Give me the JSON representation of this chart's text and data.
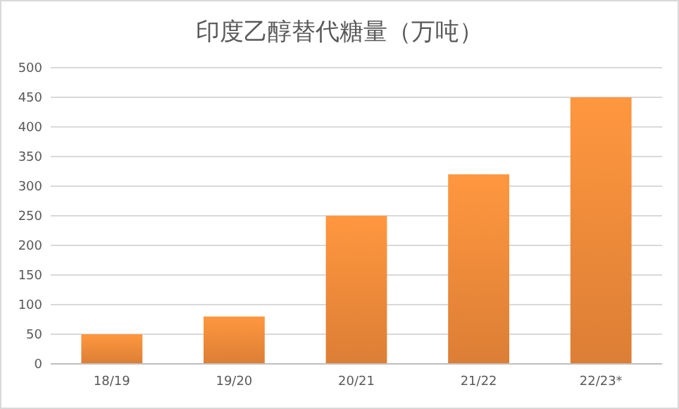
{
  "chart_data": {
    "type": "bar",
    "title": "印度乙醇替代糖量（万吨）",
    "categories": [
      "18/19",
      "19/20",
      "20/21",
      "21/22",
      "22/23*"
    ],
    "values": [
      50,
      80,
      250,
      320,
      450
    ],
    "color": "#f08a3a",
    "ylim": [
      0,
      500
    ],
    "yticks": [
      0,
      50,
      100,
      150,
      200,
      250,
      300,
      350,
      400,
      450,
      500
    ],
    "grid": "y"
  }
}
